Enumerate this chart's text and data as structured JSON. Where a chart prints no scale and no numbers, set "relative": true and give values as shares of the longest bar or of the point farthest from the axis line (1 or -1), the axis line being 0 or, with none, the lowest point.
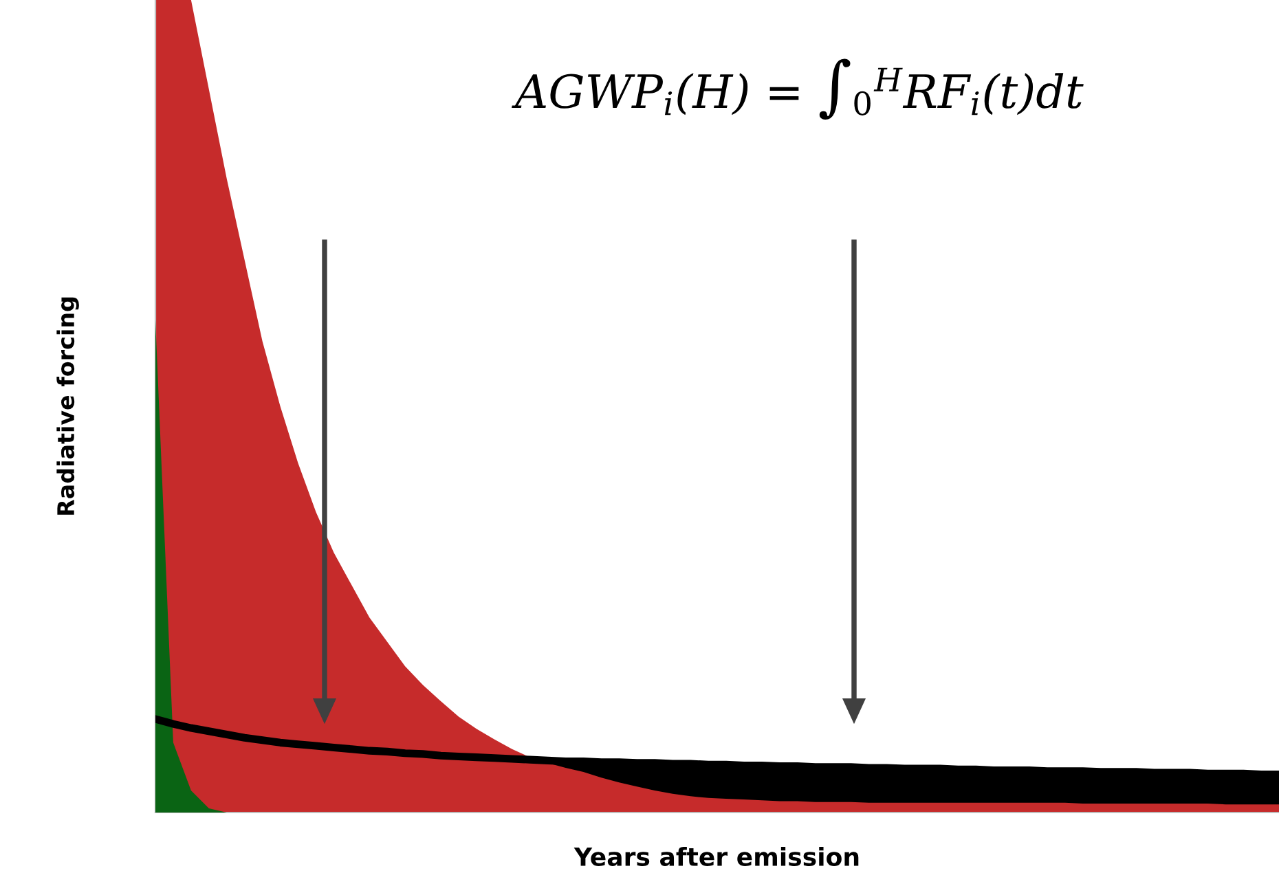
{
  "chart_data": {
    "type": "area",
    "relative": true,
    "xlabel": "Years after emission",
    "ylabel": "Radiative forcing",
    "annotations": [
      "AGWP$_{i}$(H) = ∫$_{0}$$^{H}$RF$_{i}$(t)dt"
    ],
    "categories": [
      null,
      null,
      null,
      null,
      null,
      null,
      null,
      null,
      null,
      null,
      null,
      null,
      null,
      null,
      null,
      null,
      null,
      null,
      null,
      null,
      null,
      null,
      null,
      null,
      null,
      null,
      null,
      null,
      null,
      null,
      null,
      null,
      null,
      null,
      null,
      null,
      null,
      null,
      null,
      null,
      null,
      null,
      null,
      null,
      null,
      null,
      null,
      null,
      null,
      null,
      null,
      null,
      null,
      null,
      null,
      null,
      null,
      null,
      null,
      null,
      null,
      null,
      null,
      null
    ],
    "series": [
      {
        "color": "#000000",
        "values": [
          0.115,
          0.109,
          0.104,
          0.1,
          0.096,
          0.092,
          0.089,
          0.086,
          0.084,
          0.082,
          0.08,
          0.078,
          0.076,
          0.075,
          0.073,
          0.072,
          0.07,
          0.069,
          0.068,
          0.067,
          0.066,
          0.065,
          0.064,
          0.063,
          0.063,
          0.062,
          0.062,
          0.061,
          0.061,
          0.06,
          0.06,
          0.059,
          0.059,
          0.058,
          0.058,
          0.057,
          0.057,
          0.056,
          0.056,
          0.056,
          0.055,
          0.055,
          0.054,
          0.054,
          0.054,
          0.053,
          0.053,
          0.052,
          0.052,
          0.052,
          0.051,
          0.051,
          0.051,
          0.05,
          0.05,
          0.05,
          0.049,
          0.049,
          0.049,
          0.048,
          0.048,
          0.048,
          0.047,
          0.047
        ]
      },
      {
        "color": "#c62b2b",
        "values": [
          1,
          1,
          1,
          0.89,
          0.78,
          0.68,
          0.58,
          0.5,
          0.43,
          0.37,
          0.32,
          0.28,
          0.24,
          0.21,
          0.18,
          0.157,
          0.137,
          0.118,
          0.103,
          0.09,
          0.078,
          0.068,
          0.061,
          0.055,
          0.05,
          0.043,
          0.037,
          0.032,
          0.027,
          0.023,
          0.02,
          0.018,
          0.017,
          0.016,
          0.015,
          0.014,
          0.014,
          0.013,
          0.013,
          0.013,
          0.012,
          0.012,
          0.012,
          0.012,
          0.012,
          0.012,
          0.012,
          0.012,
          0.012,
          0.012,
          0.012,
          0.012,
          0.011,
          0.011,
          0.011,
          0.011,
          0.011,
          0.011,
          0.011,
          0.011,
          0.01,
          0.01,
          0.01,
          0.01
        ]
      },
      {
        "color": "#0a6414",
        "values": [
          0.606,
          0.086,
          0.027,
          0.005,
          0,
          0,
          0,
          0,
          0,
          0,
          0,
          0,
          0,
          0,
          0,
          0,
          0,
          0,
          0,
          0,
          0,
          0,
          0,
          0,
          0,
          0,
          0,
          0,
          0,
          0,
          0,
          0,
          0,
          0,
          0,
          0,
          0,
          0,
          0,
          0,
          0,
          0,
          0,
          0,
          0,
          0,
          0,
          0,
          0,
          0,
          0,
          0,
          0,
          0,
          0,
          0,
          0,
          0,
          0,
          0,
          0,
          0,
          0,
          0
        ]
      }
    ]
  }
}
